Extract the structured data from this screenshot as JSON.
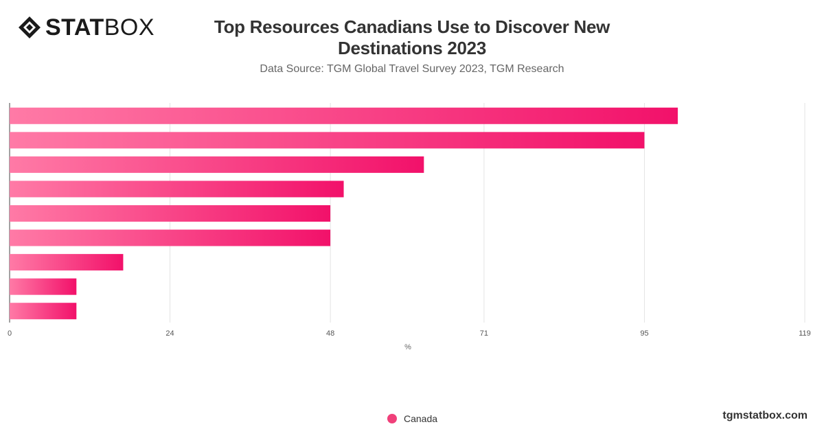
{
  "logo": {
    "bold": "STAT",
    "light": "BOX"
  },
  "header": {
    "title": "Top Resources Canadians Use to Discover New Destinations 2023",
    "subtitle": "Data Source: TGM Global Travel Survey 2023, TGM Research"
  },
  "chart_data": {
    "type": "bar",
    "orientation": "horizontal",
    "categories": [
      "",
      "",
      "",
      "",
      "",
      "",
      "",
      "",
      ""
    ],
    "series": [
      {
        "name": "Canada",
        "values": [
          100,
          95,
          62,
          50,
          48,
          48,
          17,
          10,
          10
        ]
      }
    ],
    "xlabel": "%",
    "ylabel": "",
    "xlim": [
      0,
      119
    ],
    "xticks": [
      "0",
      "24",
      "48",
      "71",
      "95",
      "119"
    ],
    "grid": true,
    "legend_position": "bottom",
    "colors": {
      "bar_start": "#ff7aa6",
      "bar_end": "#f2116a",
      "legend": "#f0407a"
    }
  },
  "legend": {
    "label": "Canada"
  },
  "footer": {
    "site": "tgmstatbox.com"
  }
}
